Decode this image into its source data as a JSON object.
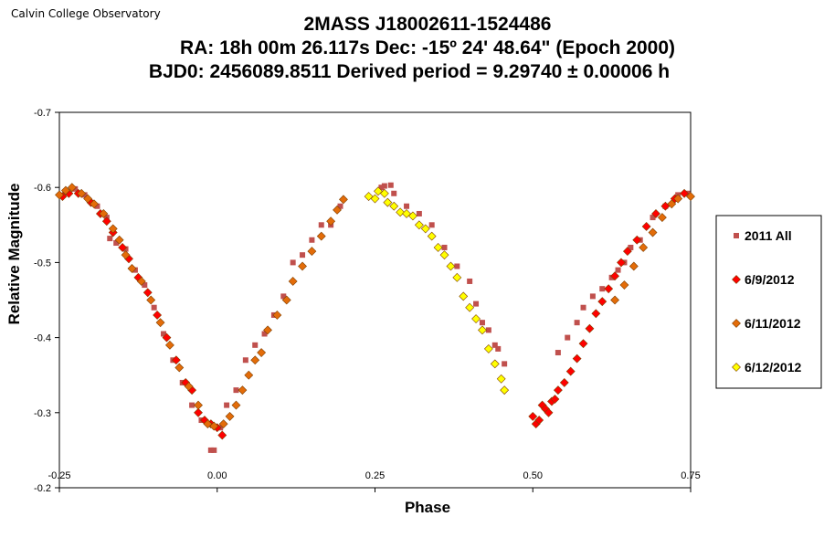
{
  "chart_data": {
    "type": "scatter",
    "observatory": "Calvin College Observatory",
    "title_lines": [
      "2MASS J18002611-1524486",
      "RA: 18h 00m 26.117s   Dec: -15º 24' 48.64\"  (Epoch 2000)",
      "BJD0: 2456089.8511   Derived period =   9.29740 ± 0.00006 h"
    ],
    "xlabel": "Phase",
    "ylabel": "Relative Magnitude",
    "xlim": [
      -0.25,
      0.75
    ],
    "ylim": [
      -0.2,
      -0.7
    ],
    "y_reversed": true,
    "x_ticks": [
      "-0.25",
      "0.00",
      "0.25",
      "0.50",
      "0.75"
    ],
    "y_ticks": [
      "-0.7",
      "-0.6",
      "-0.5",
      "-0.4",
      "-0.3",
      "-0.2"
    ],
    "grid": false,
    "legend_position": "right",
    "series": [
      {
        "name": "2011 All",
        "marker": "square",
        "color": "#c0504d",
        "points": [
          [
            -0.24,
            -0.593
          ],
          [
            -0.225,
            -0.598
          ],
          [
            -0.21,
            -0.59
          ],
          [
            -0.19,
            -0.575
          ],
          [
            -0.175,
            -0.56
          ],
          [
            -0.17,
            -0.532
          ],
          [
            -0.16,
            -0.526
          ],
          [
            -0.145,
            -0.518
          ],
          [
            -0.13,
            -0.49
          ],
          [
            -0.115,
            -0.47
          ],
          [
            -0.1,
            -0.44
          ],
          [
            -0.085,
            -0.405
          ],
          [
            -0.07,
            -0.37
          ],
          [
            -0.055,
            -0.34
          ],
          [
            -0.04,
            -0.31
          ],
          [
            -0.025,
            -0.29
          ],
          [
            -0.01,
            -0.25
          ],
          [
            -0.005,
            -0.25
          ],
          [
            0.005,
            -0.28
          ],
          [
            0.015,
            -0.31
          ],
          [
            0.03,
            -0.33
          ],
          [
            0.045,
            -0.37
          ],
          [
            0.06,
            -0.39
          ],
          [
            0.075,
            -0.405
          ],
          [
            0.09,
            -0.43
          ],
          [
            0.105,
            -0.455
          ],
          [
            0.12,
            -0.5
          ],
          [
            0.135,
            -0.51
          ],
          [
            0.15,
            -0.53
          ],
          [
            0.165,
            -0.55
          ],
          [
            0.18,
            -0.55
          ],
          [
            0.195,
            -0.575
          ],
          [
            0.26,
            -0.6
          ],
          [
            0.265,
            -0.602
          ],
          [
            0.275,
            -0.603
          ],
          [
            0.28,
            -0.592
          ],
          [
            0.3,
            -0.575
          ],
          [
            0.32,
            -0.565
          ],
          [
            0.34,
            -0.55
          ],
          [
            0.36,
            -0.52
          ],
          [
            0.38,
            -0.495
          ],
          [
            0.4,
            -0.475
          ],
          [
            0.41,
            -0.445
          ],
          [
            0.42,
            -0.42
          ],
          [
            0.43,
            -0.41
          ],
          [
            0.44,
            -0.39
          ],
          [
            0.445,
            -0.385
          ],
          [
            0.455,
            -0.365
          ],
          [
            0.54,
            -0.38
          ],
          [
            0.555,
            -0.4
          ],
          [
            0.57,
            -0.42
          ],
          [
            0.58,
            -0.44
          ],
          [
            0.595,
            -0.455
          ],
          [
            0.61,
            -0.465
          ],
          [
            0.625,
            -0.48
          ],
          [
            0.635,
            -0.49
          ],
          [
            0.645,
            -0.5
          ],
          [
            0.655,
            -0.52
          ],
          [
            0.67,
            -0.53
          ],
          [
            0.69,
            -0.56
          ],
          [
            0.71,
            -0.575
          ],
          [
            0.73,
            -0.59
          ],
          [
            0.745,
            -0.592
          ]
        ]
      },
      {
        "name": "6/9/2012",
        "marker": "diamond",
        "color": "#ff0000",
        "points": [
          [
            -0.245,
            -0.588
          ],
          [
            -0.235,
            -0.592
          ],
          [
            -0.22,
            -0.592
          ],
          [
            -0.2,
            -0.58
          ],
          [
            -0.185,
            -0.565
          ],
          [
            -0.175,
            -0.555
          ],
          [
            -0.165,
            -0.54
          ],
          [
            -0.15,
            -0.52
          ],
          [
            -0.14,
            -0.505
          ],
          [
            -0.125,
            -0.48
          ],
          [
            -0.11,
            -0.46
          ],
          [
            -0.095,
            -0.43
          ],
          [
            -0.08,
            -0.4
          ],
          [
            -0.065,
            -0.37
          ],
          [
            -0.05,
            -0.34
          ],
          [
            -0.04,
            -0.33
          ],
          [
            -0.03,
            -0.3
          ],
          [
            -0.02,
            -0.29
          ],
          [
            -0.01,
            -0.285
          ],
          [
            0.0,
            -0.28
          ],
          [
            0.008,
            -0.27
          ],
          [
            0.5,
            -0.295
          ],
          [
            0.505,
            -0.285
          ],
          [
            0.51,
            -0.29
          ],
          [
            0.515,
            -0.31
          ],
          [
            0.52,
            -0.305
          ],
          [
            0.525,
            -0.3
          ],
          [
            0.53,
            -0.315
          ],
          [
            0.535,
            -0.318
          ],
          [
            0.54,
            -0.33
          ],
          [
            0.55,
            -0.34
          ],
          [
            0.56,
            -0.355
          ],
          [
            0.57,
            -0.372
          ],
          [
            0.58,
            -0.392
          ],
          [
            0.59,
            -0.412
          ],
          [
            0.6,
            -0.432
          ],
          [
            0.61,
            -0.448
          ],
          [
            0.62,
            -0.465
          ],
          [
            0.63,
            -0.482
          ],
          [
            0.64,
            -0.5
          ],
          [
            0.65,
            -0.515
          ],
          [
            0.665,
            -0.53
          ],
          [
            0.68,
            -0.548
          ],
          [
            0.695,
            -0.565
          ],
          [
            0.71,
            -0.575
          ],
          [
            0.725,
            -0.585
          ],
          [
            0.74,
            -0.592
          ]
        ]
      },
      {
        "name": "6/11/2012",
        "marker": "diamond",
        "color": "#e36c09",
        "points": [
          [
            -0.25,
            -0.59
          ],
          [
            -0.24,
            -0.596
          ],
          [
            -0.23,
            -0.6
          ],
          [
            -0.215,
            -0.592
          ],
          [
            -0.205,
            -0.585
          ],
          [
            -0.195,
            -0.578
          ],
          [
            -0.18,
            -0.565
          ],
          [
            -0.165,
            -0.545
          ],
          [
            -0.155,
            -0.53
          ],
          [
            -0.145,
            -0.51
          ],
          [
            -0.135,
            -0.492
          ],
          [
            -0.12,
            -0.475
          ],
          [
            -0.105,
            -0.45
          ],
          [
            -0.09,
            -0.42
          ],
          [
            -0.075,
            -0.39
          ],
          [
            -0.06,
            -0.36
          ],
          [
            -0.045,
            -0.335
          ],
          [
            -0.03,
            -0.31
          ],
          [
            -0.015,
            -0.285
          ],
          [
            -0.005,
            -0.282
          ],
          [
            0.01,
            -0.285
          ],
          [
            0.02,
            -0.295
          ],
          [
            0.03,
            -0.31
          ],
          [
            0.04,
            -0.33
          ],
          [
            0.05,
            -0.35
          ],
          [
            0.06,
            -0.37
          ],
          [
            0.07,
            -0.38
          ],
          [
            0.08,
            -0.41
          ],
          [
            0.095,
            -0.43
          ],
          [
            0.11,
            -0.45
          ],
          [
            0.12,
            -0.475
          ],
          [
            0.135,
            -0.495
          ],
          [
            0.15,
            -0.515
          ],
          [
            0.165,
            -0.535
          ],
          [
            0.18,
            -0.555
          ],
          [
            0.19,
            -0.57
          ],
          [
            0.2,
            -0.584
          ],
          [
            0.63,
            -0.45
          ],
          [
            0.645,
            -0.47
          ],
          [
            0.66,
            -0.495
          ],
          [
            0.675,
            -0.52
          ],
          [
            0.69,
            -0.54
          ],
          [
            0.705,
            -0.56
          ],
          [
            0.72,
            -0.578
          ],
          [
            0.73,
            -0.585
          ],
          [
            0.75,
            -0.588
          ]
        ]
      },
      {
        "name": "6/12/2012",
        "marker": "diamond",
        "color": "#ffff00",
        "points": [
          [
            0.24,
            -0.588
          ],
          [
            0.25,
            -0.585
          ],
          [
            0.255,
            -0.595
          ],
          [
            0.265,
            -0.592
          ],
          [
            0.27,
            -0.58
          ],
          [
            0.28,
            -0.575
          ],
          [
            0.29,
            -0.567
          ],
          [
            0.3,
            -0.565
          ],
          [
            0.31,
            -0.562
          ],
          [
            0.32,
            -0.55
          ],
          [
            0.33,
            -0.545
          ],
          [
            0.34,
            -0.535
          ],
          [
            0.35,
            -0.52
          ],
          [
            0.36,
            -0.51
          ],
          [
            0.37,
            -0.495
          ],
          [
            0.38,
            -0.48
          ],
          [
            0.39,
            -0.455
          ],
          [
            0.4,
            -0.44
          ],
          [
            0.41,
            -0.425
          ],
          [
            0.42,
            -0.41
          ],
          [
            0.43,
            -0.385
          ],
          [
            0.44,
            -0.365
          ],
          [
            0.45,
            -0.345
          ],
          [
            0.455,
            -0.33
          ]
        ]
      }
    ]
  }
}
